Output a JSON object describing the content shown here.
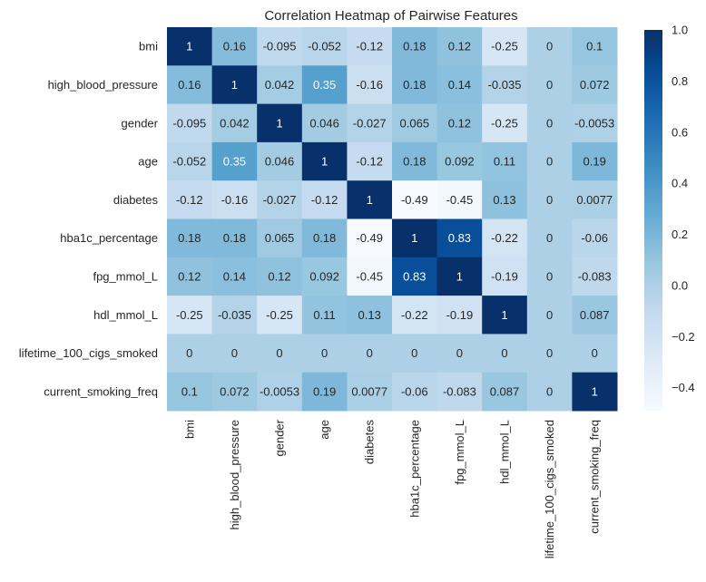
{
  "chart_data": {
    "type": "heatmap",
    "title": "Correlation Heatmap of Pairwise Features",
    "xlabel": "",
    "ylabel": "",
    "colormap": "Blues",
    "vmin": -0.49,
    "vmax": 1.0,
    "colorbar_ticks": [
      1.0,
      0.8,
      0.6,
      0.4,
      0.2,
      0.0,
      -0.2,
      -0.4
    ],
    "colorbar_tick_labels": [
      "1.0",
      "0.8",
      "0.6",
      "0.4",
      "0.2",
      "0.0",
      "−0.2",
      "−0.4"
    ],
    "rows": [
      "bmi",
      "high_blood_pressure",
      "gender",
      "age",
      "diabetes",
      "hba1c_percentage",
      "fpg_mmol_L",
      "hdl_mmol_L",
      "lifetime_100_cigs_smoked",
      "current_smoking_freq"
    ],
    "columns": [
      "bmi",
      "high_blood_pressure",
      "gender",
      "age",
      "diabetes",
      "hba1c_percentage",
      "fpg_mmol_L",
      "hdl_mmol_L",
      "lifetime_100_cigs_smoked",
      "current_smoking_freq"
    ],
    "values": [
      [
        1,
        0.16,
        -0.095,
        -0.052,
        -0.12,
        0.18,
        0.12,
        -0.25,
        0,
        0.1
      ],
      [
        0.16,
        1,
        0.042,
        0.35,
        -0.16,
        0.18,
        0.14,
        -0.035,
        0,
        0.072
      ],
      [
        -0.095,
        0.042,
        1,
        0.046,
        -0.027,
        0.065,
        0.12,
        -0.25,
        0,
        -0.0053
      ],
      [
        -0.052,
        0.35,
        0.046,
        1,
        -0.12,
        0.18,
        0.092,
        0.11,
        0,
        0.19
      ],
      [
        -0.12,
        -0.16,
        -0.027,
        -0.12,
        1,
        -0.49,
        -0.45,
        0.13,
        0,
        0.0077
      ],
      [
        0.18,
        0.18,
        0.065,
        0.18,
        -0.49,
        1,
        0.83,
        -0.22,
        0,
        -0.06
      ],
      [
        0.12,
        0.14,
        0.12,
        0.092,
        -0.45,
        0.83,
        1,
        -0.19,
        0,
        -0.083
      ],
      [
        -0.25,
        -0.035,
        -0.25,
        0.11,
        0.13,
        -0.22,
        -0.19,
        1,
        0,
        0.087
      ],
      [
        0,
        0,
        0,
        0,
        0,
        0,
        0,
        0,
        0,
        0
      ],
      [
        0.1,
        0.072,
        -0.0053,
        0.19,
        0.0077,
        -0.06,
        -0.083,
        0.087,
        0,
        1
      ]
    ],
    "annotations": [
      [
        "1",
        "0.16",
        "-0.095",
        "-0.052",
        "-0.12",
        "0.18",
        "0.12",
        "-0.25",
        "0",
        "0.1"
      ],
      [
        "0.16",
        "1",
        "0.042",
        "0.35",
        "-0.16",
        "0.18",
        "0.14",
        "-0.035",
        "0",
        "0.072"
      ],
      [
        "-0.095",
        "0.042",
        "1",
        "0.046",
        "-0.027",
        "0.065",
        "0.12",
        "-0.25",
        "0",
        "-0.0053"
      ],
      [
        "-0.052",
        "0.35",
        "0.046",
        "1",
        "-0.12",
        "0.18",
        "0.092",
        "0.11",
        "0",
        "0.19"
      ],
      [
        "-0.12",
        "-0.16",
        "-0.027",
        "-0.12",
        "1",
        "-0.49",
        "-0.45",
        "0.13",
        "0",
        "0.0077"
      ],
      [
        "0.18",
        "0.18",
        "0.065",
        "0.18",
        "-0.49",
        "1",
        "0.83",
        "-0.22",
        "0",
        "-0.06"
      ],
      [
        "0.12",
        "0.14",
        "0.12",
        "0.092",
        "-0.45",
        "0.83",
        "1",
        "-0.19",
        "0",
        "-0.083"
      ],
      [
        "-0.25",
        "-0.035",
        "-0.25",
        "0.11",
        "0.13",
        "-0.22",
        "-0.19",
        "1",
        "0",
        "0.087"
      ],
      [
        "0",
        "0",
        "0",
        "0",
        "0",
        "0",
        "0",
        "0",
        "0",
        "0"
      ],
      [
        "0.1",
        "0.072",
        "-0.0053",
        "0.19",
        "0.0077",
        "-0.06",
        "-0.083",
        "0.087",
        "0",
        "1"
      ]
    ],
    "annotation_text_colors": {
      "dark": "#262626",
      "light": "#ffffff"
    }
  }
}
